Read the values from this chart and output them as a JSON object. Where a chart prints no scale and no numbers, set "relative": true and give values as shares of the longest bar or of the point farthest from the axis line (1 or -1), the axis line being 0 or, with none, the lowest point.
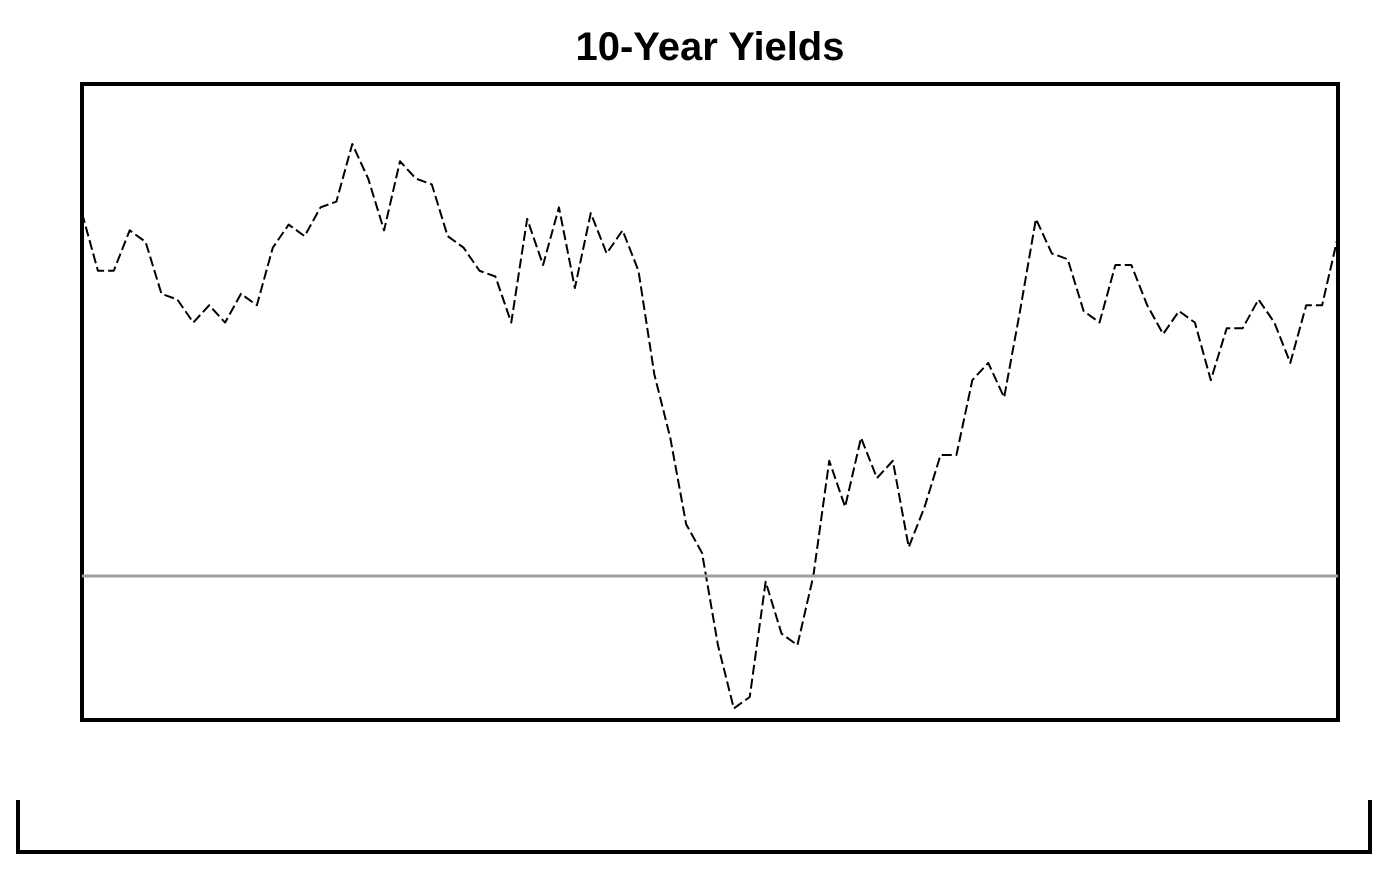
{
  "chart_data": {
    "type": "line",
    "title": "10-Year Yields",
    "relative": true,
    "line_style": "dashed",
    "categories": [
      null,
      null,
      null,
      null,
      null,
      null,
      null,
      null,
      null,
      null,
      null,
      null,
      null,
      null,
      null,
      null,
      null,
      null,
      null,
      null,
      null,
      null,
      null,
      null,
      null,
      null,
      null,
      null,
      null,
      null,
      null,
      null,
      null,
      null,
      null,
      null,
      null,
      null,
      null,
      null,
      null,
      null,
      null,
      null,
      null,
      null,
      null,
      null,
      null,
      null,
      null,
      null,
      null,
      null,
      null,
      null,
      null,
      null,
      null,
      null,
      null,
      null,
      null,
      null,
      null,
      null,
      null,
      null,
      null,
      null,
      null,
      null,
      null,
      null,
      null,
      null,
      null,
      null,
      null,
      null
    ],
    "series": [
      {
        "color": "#000000",
        "values": [
          0.88,
          0.78,
          0.78,
          0.85,
          0.83,
          0.74,
          0.73,
          0.69,
          0.72,
          0.69,
          0.74,
          0.72,
          0.82,
          0.86,
          0.84,
          0.89,
          0.9,
          1.0,
          0.94,
          0.85,
          0.97,
          0.94,
          0.93,
          0.84,
          0.82,
          0.78,
          0.77,
          0.69,
          0.87,
          0.79,
          0.89,
          0.75,
          0.88,
          0.81,
          0.85,
          0.78,
          0.6,
          0.49,
          0.34,
          0.29,
          0.13,
          0.02,
          0.04,
          0.24,
          0.15,
          0.13,
          0.25,
          0.45,
          0.37,
          0.49,
          0.42,
          0.45,
          0.3,
          0.37,
          0.46,
          0.46,
          0.59,
          0.62,
          0.56,
          0.71,
          0.87,
          0.81,
          0.8,
          0.71,
          0.69,
          0.79,
          0.79,
          0.72,
          0.67,
          0.71,
          0.69,
          0.59,
          0.68,
          0.68,
          0.73,
          0.69,
          0.62,
          0.72,
          0.72,
          0.84
        ]
      }
    ],
    "ref_lines": [
      {
        "axis": "y",
        "value": 0.25,
        "color": "#a0a0a0"
      }
    ]
  }
}
